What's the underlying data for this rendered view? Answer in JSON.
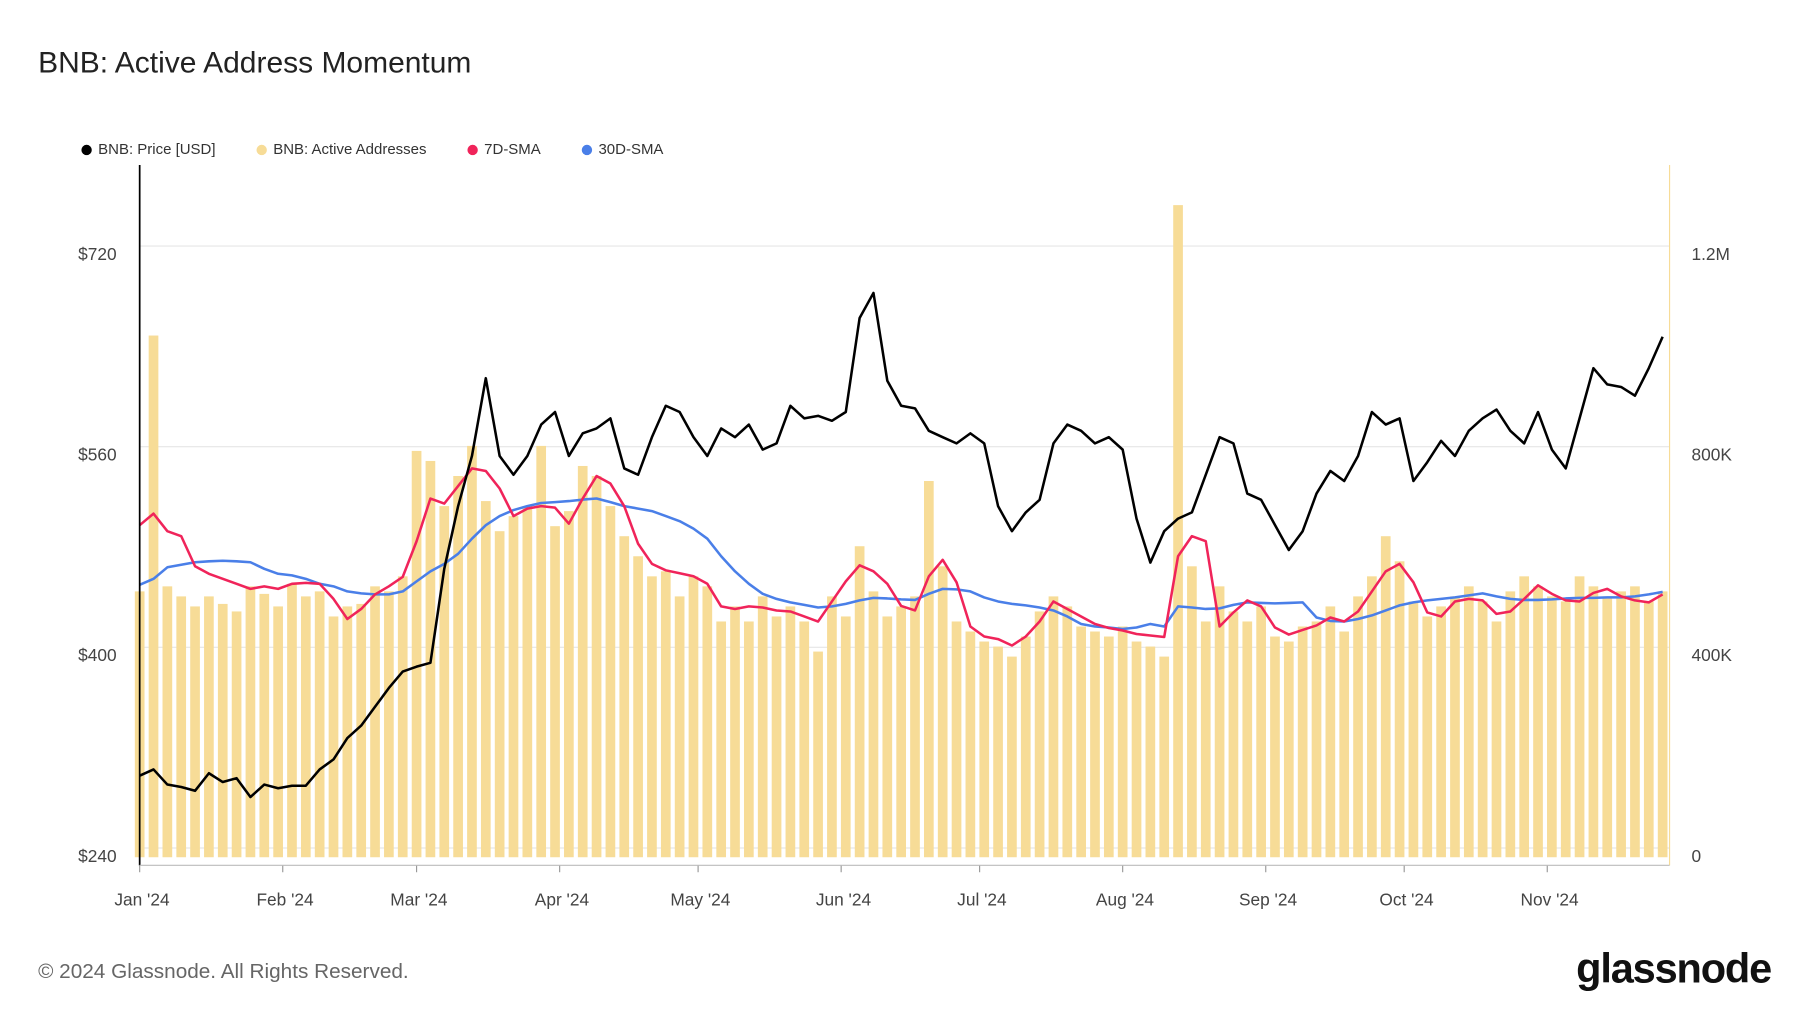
{
  "chart_data": {
    "type": "line",
    "title": "BNB: Active Address Momentum",
    "copyright": "© 2024 Glassnode. All Rights Reserved.",
    "logo": "glassnode",
    "x": [
      0,
      3,
      6,
      9,
      12,
      15,
      18,
      21,
      24,
      27,
      30,
      33,
      36,
      39,
      42,
      45,
      48,
      51,
      54,
      57,
      60,
      63,
      66,
      69,
      72,
      75,
      78,
      81,
      84,
      87,
      90,
      93,
      96,
      99,
      102,
      105,
      108,
      111,
      114,
      117,
      120,
      123,
      126,
      129,
      132,
      135,
      138,
      141,
      144,
      147,
      150,
      153,
      156,
      159,
      162,
      165,
      168,
      171,
      174,
      177,
      180,
      183,
      186,
      189,
      192,
      195,
      198,
      201,
      204,
      207,
      210,
      213,
      216,
      219,
      222,
      225,
      228,
      231,
      234,
      237,
      240,
      243,
      246,
      249,
      252,
      255,
      258,
      261,
      264,
      267,
      270,
      273,
      276,
      279,
      282,
      285,
      288,
      291,
      294,
      297,
      300,
      303,
      306,
      309,
      312,
      315,
      318,
      321,
      324,
      327,
      330
    ],
    "xlim": [
      0,
      330
    ],
    "xticks": [
      {
        "value": 0,
        "label": "Jan '24"
      },
      {
        "value": 31,
        "label": "Feb '24"
      },
      {
        "value": 60,
        "label": "Mar '24"
      },
      {
        "value": 91,
        "label": "Apr '24"
      },
      {
        "value": 121,
        "label": "May '24"
      },
      {
        "value": 152,
        "label": "Jun '24"
      },
      {
        "value": 182,
        "label": "Jul '24"
      },
      {
        "value": 213,
        "label": "Aug '24"
      },
      {
        "value": 244,
        "label": "Sep '24"
      },
      {
        "value": 274,
        "label": "Oct '24"
      },
      {
        "value": 305,
        "label": "Nov '24"
      }
    ],
    "ylim": [
      240,
      792
    ],
    "yticks": [
      {
        "value": 240,
        "label": "$240"
      },
      {
        "value": 400,
        "label": "$400"
      },
      {
        "value": 560,
        "label": "$560"
      },
      {
        "value": 720,
        "label": "$720"
      }
    ],
    "y2lim": [
      0,
      1380000
    ],
    "y2ticks": [
      0,
      {
        "value": 400000,
        "label": "400K"
      },
      {
        "value": 800000,
        "label": "800K"
      },
      {
        "value": 1200000,
        "label": "1.2M"
      }
    ],
    "grid": true,
    "legend": "top-left",
    "series": [
      {
        "name": "BNB: Price [USD]",
        "color": "#000000",
        "type": "line",
        "axis": "y",
        "values": [
          305,
          310,
          298,
          296,
          293,
          307,
          300,
          303,
          288,
          298,
          295,
          297,
          297,
          310,
          318,
          335,
          345,
          360,
          375,
          388,
          392,
          395,
          470,
          520,
          560,
          622,
          560,
          545,
          560,
          585,
          595,
          560,
          578,
          582,
          590,
          550,
          545,
          575,
          600,
          595,
          575,
          560,
          582,
          575,
          585,
          565,
          570,
          600,
          590,
          592,
          588,
          595,
          670,
          690,
          620,
          600,
          598,
          580,
          575,
          570,
          578,
          570,
          520,
          500,
          515,
          525,
          570,
          585,
          580,
          570,
          575,
          565,
          510,
          475,
          500,
          510,
          515,
          545,
          575,
          570,
          530,
          525,
          505,
          485,
          500,
          530,
          548,
          540,
          560,
          595,
          585,
          590,
          540,
          555,
          572,
          560,
          580,
          590,
          597,
          580,
          570,
          595,
          565,
          550,
          590,
          630,
          617,
          615,
          608,
          630,
          655
        ]
      },
      {
        "name": "BNB: Active Addresses",
        "color": "#f7dc97",
        "type": "bar",
        "axis": "y2",
        "values": [
          530000,
          1040000,
          540000,
          520000,
          500000,
          520000,
          505000,
          490000,
          540000,
          525000,
          500000,
          545000,
          520000,
          530000,
          480000,
          500000,
          505000,
          540000,
          530000,
          560000,
          810000,
          790000,
          700000,
          760000,
          820000,
          710000,
          650000,
          680000,
          700000,
          820000,
          660000,
          690000,
          780000,
          760000,
          700000,
          640000,
          600000,
          560000,
          570000,
          520000,
          560000,
          540000,
          470000,
          500000,
          470000,
          520000,
          480000,
          500000,
          470000,
          410000,
          520000,
          480000,
          620000,
          530000,
          480000,
          500000,
          520000,
          750000,
          580000,
          470000,
          450000,
          430000,
          420000,
          400000,
          440000,
          490000,
          520000,
          500000,
          460000,
          450000,
          440000,
          460000,
          430000,
          420000,
          400000,
          1300000,
          580000,
          470000,
          540000,
          490000,
          470000,
          500000,
          440000,
          430000,
          460000,
          470000,
          500000,
          450000,
          520000,
          560000,
          640000,
          590000,
          510000,
          480000,
          500000,
          520000,
          540000,
          510000,
          470000,
          530000,
          560000,
          540000,
          520000,
          510000,
          560000,
          540000,
          520000,
          530000,
          540000,
          510000,
          530000
        ]
      },
      {
        "name": "7D-SMA",
        "color": "#f0245a",
        "type": "line",
        "axis": "y2",
        "values": [
          662000,
          685000,
          650000,
          640000,
          580000,
          565000,
          555000,
          545000,
          535000,
          540000,
          535000,
          545000,
          547000,
          545000,
          515000,
          475000,
          495000,
          524000,
          540000,
          559000,
          630000,
          715000,
          705000,
          740000,
          775000,
          770000,
          735000,
          680000,
          695000,
          700000,
          697000,
          665000,
          715000,
          760000,
          745000,
          700000,
          625000,
          585000,
          572000,
          566000,
          560000,
          545000,
          500000,
          495000,
          500000,
          498000,
          492000,
          490000,
          480000,
          470000,
          510000,
          550000,
          582000,
          570000,
          545000,
          501000,
          492000,
          560000,
          593000,
          548000,
          460000,
          440000,
          435000,
          422000,
          440000,
          470000,
          510000,
          495000,
          480000,
          465000,
          457000,
          452000,
          445000,
          442000,
          439000,
          600000,
          640000,
          630000,
          460000,
          488000,
          512000,
          500000,
          458000,
          444000,
          453000,
          462000,
          478000,
          470000,
          490000,
          530000,
          570000,
          585000,
          548000,
          488000,
          480000,
          510000,
          515000,
          512000,
          485000,
          490000,
          515000,
          542000,
          525000,
          512000,
          510000,
          527000,
          535000,
          520000,
          512000,
          508000,
          524000
        ]
      },
      {
        "name": "30D-SMA",
        "color": "#4a7fe8",
        "type": "line",
        "axis": "y2",
        "values": [
          543000,
          555000,
          578000,
          583000,
          588000,
          590000,
          591000,
          590000,
          588000,
          575000,
          565000,
          562000,
          555000,
          545000,
          540000,
          530000,
          526000,
          524000,
          524000,
          530000,
          550000,
          570000,
          585000,
          605000,
          635000,
          662000,
          680000,
          692000,
          700000,
          706000,
          708000,
          710000,
          713000,
          715000,
          708000,
          700000,
          695000,
          690000,
          680000,
          670000,
          655000,
          635000,
          600000,
          570000,
          545000,
          525000,
          515000,
          508000,
          503000,
          498000,
          500000,
          505000,
          512000,
          517000,
          516000,
          514000,
          513000,
          525000,
          535000,
          534000,
          530000,
          518000,
          510000,
          505000,
          502000,
          498000,
          492000,
          480000,
          465000,
          460000,
          458000,
          455000,
          458000,
          465000,
          460000,
          500000,
          498000,
          495000,
          496000,
          503000,
          508000,
          507000,
          506000,
          507000,
          508000,
          478000,
          471000,
          470000,
          475000,
          482000,
          492000,
          502000,
          508000,
          512000,
          515000,
          518000,
          522000,
          526000,
          520000,
          515000,
          513000,
          513000,
          514000,
          516000,
          517000,
          517000,
          518000,
          518000,
          520000,
          524000,
          529000
        ]
      }
    ]
  }
}
